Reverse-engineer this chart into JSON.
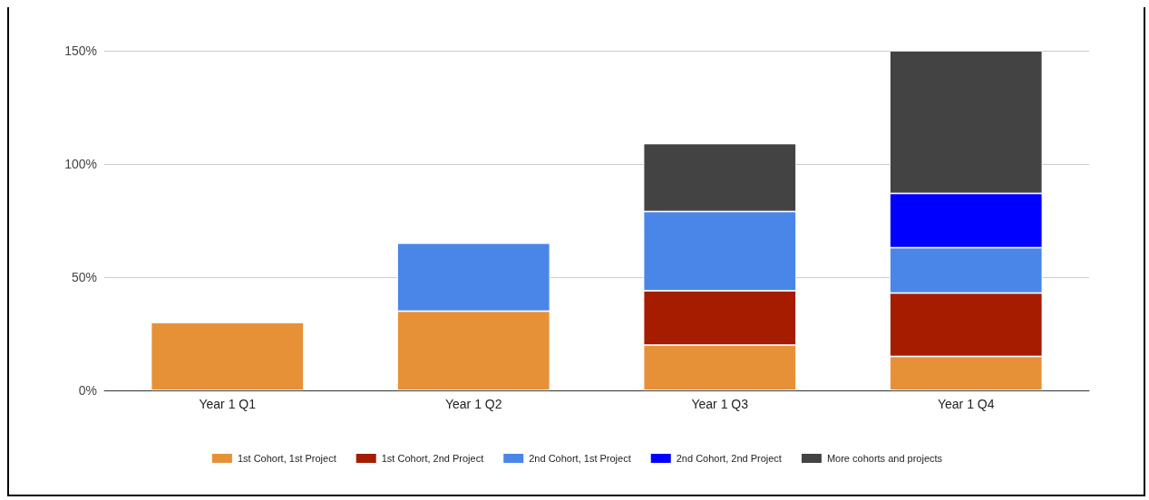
{
  "chart_data": {
    "type": "bar",
    "stacked": true,
    "categories": [
      "Year 1 Q1",
      "Year 1 Q2",
      "Year 1 Q3",
      "Year 1 Q4"
    ],
    "series": [
      {
        "name": "1st Cohort, 1st Project",
        "color": "#e69138",
        "values": [
          30,
          35,
          20,
          15
        ]
      },
      {
        "name": "1st Cohort, 2nd Project",
        "color": "#a61c00",
        "values": [
          null,
          null,
          24,
          28
        ]
      },
      {
        "name": "2nd Cohort, 1st Project",
        "color": "#4a86e8",
        "values": [
          null,
          30,
          35,
          20
        ]
      },
      {
        "name": "2nd Cohort, 2nd Project",
        "color": "#0000ff",
        "values": [
          null,
          null,
          null,
          24
        ]
      },
      {
        "name": "More cohorts and projects",
        "color": "#434343",
        "values": [
          null,
          null,
          30,
          63
        ]
      }
    ],
    "ylim": [
      0,
      150
    ],
    "yticks": [
      {
        "value": 0,
        "label": "0%"
      },
      {
        "value": 50,
        "label": "50%"
      },
      {
        "value": 100,
        "label": "100%"
      },
      {
        "value": 150,
        "label": "150%"
      }
    ],
    "grid": "y",
    "legend": "bottom"
  }
}
